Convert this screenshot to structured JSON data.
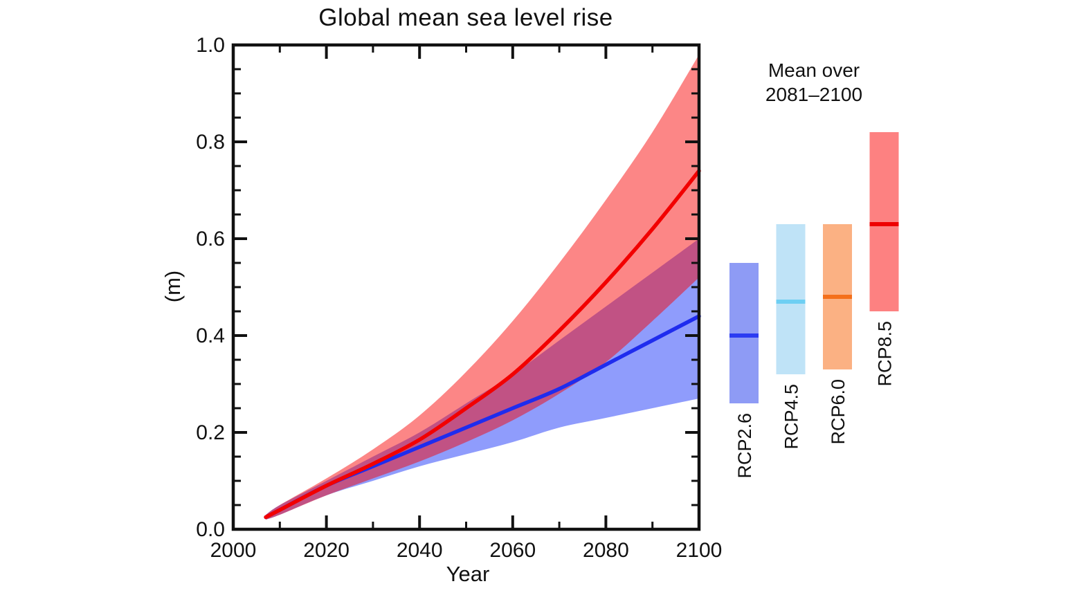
{
  "title": "Global mean sea level rise",
  "axes": {
    "ylabel": "(m)",
    "xlabel": "Year"
  },
  "legend": {
    "header_line1": "Mean over",
    "header_line2": "2081–2100"
  },
  "colors": {
    "axis": "#111111",
    "rcp26_band": "#8f9cfc",
    "rcp85_band_overlay": "rgba(248,0,0,0.475)",
    "rcp26_line": "#1f2cee",
    "rcp85_line": "#f20000"
  },
  "chart_data": {
    "type": "line",
    "title": "Global mean sea level rise",
    "xlabel": "Year",
    "ylabel": "(m)",
    "xlim": [
      2000,
      2100
    ],
    "ylim": [
      0.0,
      1.0
    ],
    "grid": false,
    "x_ticks_major": [
      2000,
      2020,
      2040,
      2060,
      2080,
      2100
    ],
    "x_tick_minor_step": 10,
    "y_ticks_major": [
      0.0,
      0.2,
      0.4,
      0.6,
      0.8,
      1.0
    ],
    "y_tick_minor_step": 0.05,
    "x": [
      2007,
      2010,
      2020,
      2030,
      2040,
      2050,
      2060,
      2070,
      2080,
      2090,
      2100
    ],
    "series": [
      {
        "name": "RCP2.6 likely range",
        "kind": "band",
        "fill": "#8f9cfc",
        "upper": [
          0.03,
          0.05,
          0.1,
          0.15,
          0.2,
          0.26,
          0.32,
          0.39,
          0.46,
          0.53,
          0.6
        ],
        "lower": [
          0.02,
          0.03,
          0.07,
          0.1,
          0.13,
          0.155,
          0.18,
          0.21,
          0.23,
          0.25,
          0.27
        ]
      },
      {
        "name": "RCP8.5 likely range",
        "kind": "band",
        "fill": "rgba(248,0,0,0.475)",
        "upper": [
          0.03,
          0.05,
          0.105,
          0.165,
          0.235,
          0.325,
          0.43,
          0.55,
          0.68,
          0.82,
          0.98
        ],
        "lower": [
          0.02,
          0.03,
          0.07,
          0.105,
          0.14,
          0.18,
          0.225,
          0.28,
          0.345,
          0.43,
          0.52
        ]
      },
      {
        "name": "RCP2.6 median",
        "kind": "line",
        "stroke": "#1f2cee",
        "values": [
          0.025,
          0.04,
          0.09,
          0.13,
          0.17,
          0.21,
          0.25,
          0.29,
          0.34,
          0.39,
          0.44
        ]
      },
      {
        "name": "RCP8.5 median",
        "kind": "line",
        "stroke": "#f20000",
        "values": [
          0.025,
          0.04,
          0.09,
          0.135,
          0.185,
          0.25,
          0.32,
          0.41,
          0.51,
          0.62,
          0.74
        ]
      }
    ],
    "bars_mean_2081_2100": [
      {
        "label": "RCP2.6",
        "mean": 0.4,
        "low": 0.26,
        "high": 0.55,
        "fill": "#8e9bf5",
        "line": "#2b3cf2"
      },
      {
        "label": "RCP4.5",
        "mean": 0.47,
        "low": 0.32,
        "high": 0.63,
        "fill": "#bfe3f7",
        "line": "#6ecff3"
      },
      {
        "label": "RCP6.0",
        "mean": 0.48,
        "low": 0.33,
        "high": 0.63,
        "fill": "#fbb183",
        "line": "#f4701b"
      },
      {
        "label": "RCP8.5",
        "mean": 0.63,
        "low": 0.45,
        "high": 0.82,
        "fill": "#fd8181",
        "line": "#ee0000"
      }
    ]
  }
}
